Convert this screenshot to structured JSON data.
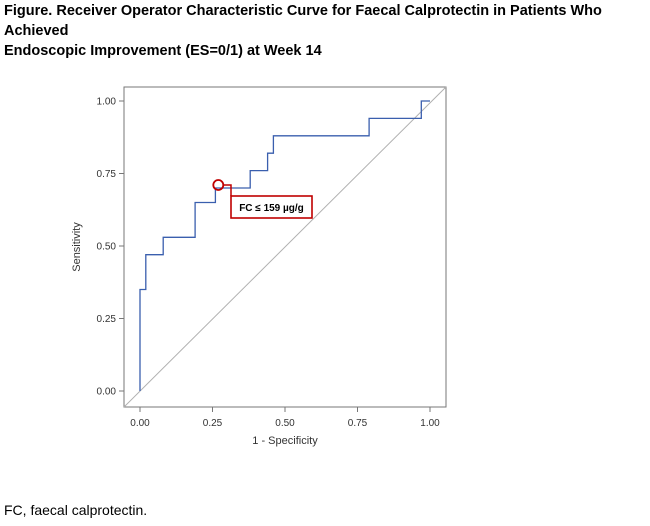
{
  "figure": {
    "title_line1": "Figure. Receiver Operator Characteristic Curve for Faecal Calprotectin in Patients Who Achieved",
    "title_line2": "Endoscopic Improvement (ES=0/1) at Week 14",
    "footnote": "FC, faecal calprotectin."
  },
  "colors": {
    "roc_line": "#3a5fae",
    "reference_line": "#b0b0b0",
    "annotation": "#c00000",
    "axis": "#777777"
  },
  "chart_data": {
    "type": "line",
    "xlabel": "1 - Specificity",
    "ylabel": "Sensitivity",
    "xlim": [
      0,
      1
    ],
    "ylim": [
      0,
      1
    ],
    "xticks": [
      "0.00",
      "0.25",
      "0.50",
      "0.75",
      "1.00"
    ],
    "yticks": [
      "0.00",
      "0.25",
      "0.50",
      "0.75",
      "1.00"
    ],
    "grid": false,
    "series": [
      {
        "x": [
          0,
          0,
          0.02,
          0.02,
          0.08,
          0.08,
          0.19,
          0.19,
          0.26,
          0.26,
          0.27,
          0.27,
          0.38,
          0.38,
          0.44,
          0.44,
          0.46,
          0.46,
          0.49,
          0.49,
          0.79,
          0.79,
          0.97,
          0.97,
          1.0
        ],
        "y": [
          0,
          0.35,
          0.35,
          0.47,
          0.47,
          0.53,
          0.53,
          0.65,
          0.65,
          0.7,
          0.7,
          0.7,
          0.7,
          0.76,
          0.76,
          0.82,
          0.82,
          0.88,
          0.88,
          0.88,
          0.88,
          0.94,
          0.94,
          1.0,
          1.0
        ]
      }
    ],
    "reference_line": [
      [
        0,
        0
      ],
      [
        1,
        1
      ]
    ],
    "annotation": {
      "text": "FC ≤ 159 µg/g",
      "point": [
        0.27,
        0.7
      ]
    }
  }
}
